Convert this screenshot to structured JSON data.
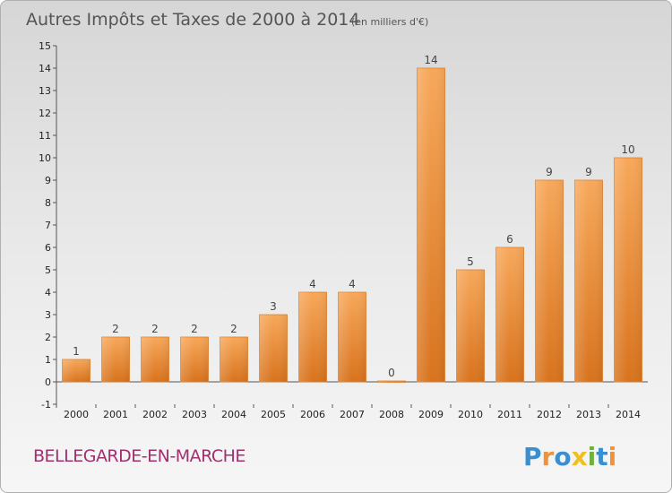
{
  "chart_data": {
    "type": "bar",
    "title": "Autres Impôts et Taxes de 2000 à 2014",
    "subtitle": "(en milliers d'€)",
    "categories": [
      "2000",
      "2001",
      "2002",
      "2003",
      "2004",
      "2005",
      "2006",
      "2007",
      "2008",
      "2009",
      "2010",
      "2011",
      "2012",
      "2013",
      "2014"
    ],
    "values": [
      1,
      2,
      2,
      2,
      2,
      3,
      4,
      4,
      0,
      14,
      5,
      6,
      9,
      9,
      10
    ],
    "ylim": [
      -1,
      15
    ],
    "yticks": [
      -1,
      0,
      1,
      2,
      3,
      4,
      5,
      6,
      7,
      8,
      9,
      10,
      11,
      12,
      13,
      14,
      15
    ],
    "grid": false,
    "bar_color": "#f0923a",
    "xlabel": "",
    "ylabel": ""
  },
  "footer": {
    "city": "BELLEGARDE-EN-MARCHE",
    "city_color": "#a0306e"
  },
  "logo": {
    "text": "Proxiti",
    "colors": [
      "#3a8fd0",
      "#f0923a",
      "#3a8fd0",
      "#f0c020",
      "#70b040",
      "#3a8fd0",
      "#f0923a"
    ]
  }
}
